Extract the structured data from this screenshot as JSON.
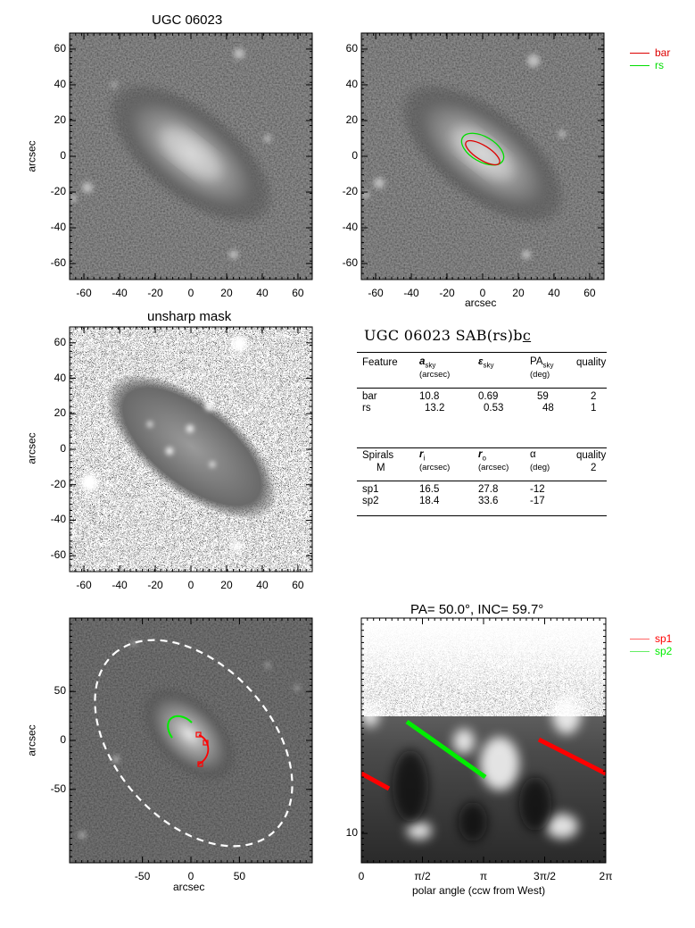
{
  "panels": {
    "p1": {
      "title": "UGC 06023",
      "ylabel": "arcsec",
      "xticks": [
        "-60",
        "-40",
        "-20",
        "0",
        "20",
        "40",
        "60"
      ],
      "yticks": [
        "60",
        "40",
        "20",
        "0",
        "-20",
        "-40",
        "-60"
      ]
    },
    "p2": {
      "xlabel": "arcsec",
      "xticks": [
        "-60",
        "-40",
        "-20",
        "0",
        "20",
        "40",
        "60"
      ],
      "yticks": [
        "60",
        "40",
        "20",
        "0",
        "-20",
        "-40",
        "-60"
      ],
      "legend": [
        {
          "label": "bar",
          "color": "#dd0000"
        },
        {
          "label": "rs",
          "color": "#00dd00"
        }
      ]
    },
    "p3": {
      "title": "unsharp mask",
      "ylabel": "arcsec",
      "xticks": [
        "-60",
        "-40",
        "-20",
        "0",
        "20",
        "40",
        "60"
      ],
      "yticks": [
        "60",
        "40",
        "20",
        "0",
        "-20",
        "-40",
        "-60"
      ]
    },
    "p5": {
      "ylabel": "arcsec",
      "xlabel": "arcsec",
      "xticks": [
        "-50",
        "0",
        "50"
      ],
      "yticks": [
        "50",
        "0",
        "-50"
      ]
    },
    "p6": {
      "title": "PA=  50.0°, INC=  59.7°",
      "xlabel": "polar angle (ccw from West)",
      "xticks": [
        "0",
        "π/2",
        "π",
        "3π/2",
        "2π"
      ],
      "yticks": [
        "10"
      ],
      "legend": [
        {
          "label": "sp1",
          "color": "#ff0000"
        },
        {
          "label": "sp2",
          "color": "#00ee00"
        }
      ]
    }
  },
  "table": {
    "title_main": "UGC 06023  SAB(rs)b",
    "title_tail": "c",
    "head1": {
      "c1": "Feature",
      "c2": "a",
      "c2sub": "sky",
      "c2unit": "(arcsec)",
      "c3": "ε",
      "c3sub": "sky",
      "c4": "PA",
      "c4sub": "sky",
      "c4unit": "(deg)",
      "c5": "quality"
    },
    "rows1": [
      {
        "f": "bar",
        "a": "10.8",
        "e": "0.69",
        "pa": "59",
        "q": "2"
      },
      {
        "f": "rs",
        "a": "13.2",
        "e": "0.53",
        "pa": "48",
        "q": "1"
      }
    ],
    "head2": {
      "c1": "Spirals",
      "c1b": "M",
      "c2": "r",
      "c2sub": "i",
      "c2unit": "(arcsec)",
      "c3": "r",
      "c3sub": "o",
      "c3unit": "(arcsec)",
      "c4": "α",
      "c4unit": "(deg)",
      "c5": "quality",
      "c5b": "2"
    },
    "rows2": [
      {
        "f": "sp1",
        "ri": "16.5",
        "ro": "27.8",
        "al": "-12"
      },
      {
        "f": "sp2",
        "ri": "18.4",
        "ro": "33.6",
        "al": "-17"
      }
    ]
  },
  "colors": {
    "bar": "#dd0000",
    "rs": "#00dd00",
    "sp1": "#ff0000",
    "sp2": "#00ee00",
    "dashed": "#ffffff"
  }
}
